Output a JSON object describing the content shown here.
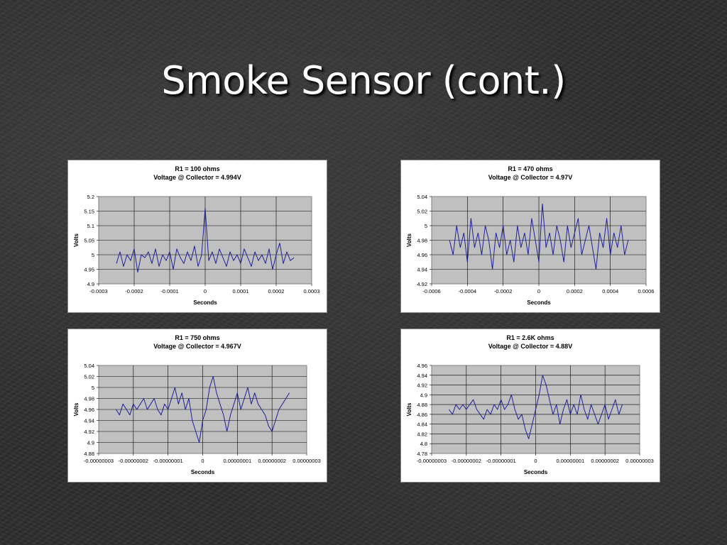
{
  "slide": {
    "title": "Smoke Sensor (cont.)",
    "colors": {
      "background": "#2f2f2f",
      "title": "#ffffff",
      "plot_area": "#c0c0c0",
      "series": "#1f1f9a"
    }
  },
  "chart_data": [
    {
      "type": "line",
      "title": "R1 = 100 ohms",
      "subtitle": "Voltage @ Collector = 4.994V",
      "xlabel": "Seconds",
      "ylabel": "Volts",
      "xlim": [
        -0.0003,
        0.0003
      ],
      "ylim": [
        4.9,
        5.2
      ],
      "x_ticks": [
        "-0.0003",
        "-0.0002",
        "-0.0001",
        "0",
        "0.0001",
        "0.0002",
        "0.0003"
      ],
      "y_ticks": [
        "4.9",
        "4.95",
        "5",
        "5.05",
        "5.1",
        "5.15",
        "5.2"
      ],
      "grid": true,
      "legend": "none",
      "series": [
        {
          "x": [
            -0.00025,
            -0.00024,
            -0.00023,
            -0.00022,
            -0.00021,
            -0.0002,
            -0.00019,
            -0.00018,
            -0.00017,
            -0.00016,
            -0.00015,
            -0.00014,
            -0.00013,
            -0.00012,
            -0.00011,
            -0.0001,
            -9e-05,
            -8e-05,
            -7e-05,
            -6e-05,
            -5e-05,
            -4e-05,
            -3e-05,
            -2e-05,
            -1e-05,
            0,
            1e-05,
            2e-05,
            3e-05,
            4e-05,
            5e-05,
            6e-05,
            7e-05,
            8e-05,
            9e-05,
            0.0001,
            0.00011,
            0.00012,
            0.00013,
            0.00014,
            0.00015,
            0.00016,
            0.00017,
            0.00018,
            0.00019,
            0.0002,
            0.00021,
            0.00022,
            0.00023,
            0.00024,
            0.00025
          ],
          "y": [
            4.97,
            5.01,
            4.96,
            5.0,
            4.98,
            5.02,
            4.94,
            5.0,
            4.99,
            5.01,
            4.97,
            5.02,
            4.96,
            5.0,
            4.98,
            5.01,
            4.95,
            5.02,
            4.99,
            4.97,
            5.01,
            4.98,
            5.03,
            4.96,
            5.0,
            5.16,
            4.98,
            5.01,
            4.97,
            5.02,
            4.99,
            4.96,
            5.01,
            4.98,
            5.0,
            4.97,
            5.02,
            4.99,
            4.96,
            5.01,
            4.98,
            5.0,
            4.97,
            5.02,
            4.95,
            5.0,
            5.04,
            4.97,
            5.01,
            4.98,
            4.99
          ]
        }
      ]
    },
    {
      "type": "line",
      "title": "R1 = 470 ohms",
      "subtitle": "Voltage @ Collector = 4.97V",
      "xlabel": "Seconds",
      "ylabel": "Volts",
      "xlim": [
        -0.0006,
        0.0006
      ],
      "ylim": [
        4.92,
        5.04
      ],
      "x_ticks": [
        "-0.0006",
        "-0.0004",
        "-0.0002",
        "0",
        "0.0002",
        "0.0004",
        "0.0006"
      ],
      "y_ticks": [
        "4.92",
        "4.94",
        "4.96",
        "4.98",
        "5",
        "5.02",
        "5.04"
      ],
      "grid": true,
      "legend": "none",
      "series": [
        {
          "x": [
            -0.0005,
            -0.00048,
            -0.00046,
            -0.00044,
            -0.00042,
            -0.0004,
            -0.00038,
            -0.00036,
            -0.00034,
            -0.00032,
            -0.0003,
            -0.00028,
            -0.00026,
            -0.00024,
            -0.00022,
            -0.0002,
            -0.00018,
            -0.00016,
            -0.00014,
            -0.00012,
            -0.0001,
            -8e-05,
            -6e-05,
            -4e-05,
            -2e-05,
            0,
            2e-05,
            4e-05,
            6e-05,
            8e-05,
            0.0001,
            0.00012,
            0.00014,
            0.00016,
            0.00018,
            0.0002,
            0.00022,
            0.00024,
            0.00026,
            0.00028,
            0.0003,
            0.00032,
            0.00034,
            0.00036,
            0.00038,
            0.0004,
            0.00042,
            0.00044,
            0.00046,
            0.00048,
            0.0005
          ],
          "y": [
            4.98,
            4.96,
            5.0,
            4.97,
            4.99,
            4.95,
            5.01,
            4.97,
            4.99,
            4.96,
            5.0,
            4.98,
            4.94,
            4.99,
            4.97,
            5.0,
            4.96,
            4.98,
            4.95,
            5.0,
            4.97,
            4.99,
            4.96,
            5.01,
            4.98,
            4.95,
            5.03,
            4.97,
            4.99,
            4.96,
            5.0,
            4.98,
            4.95,
            5.0,
            4.97,
            4.99,
            5.01,
            4.96,
            4.98,
            5.0,
            4.97,
            4.94,
            4.99,
            4.97,
            5.01,
            4.96,
            4.99,
            4.97,
            5.0,
            4.96,
            4.98
          ]
        }
      ]
    },
    {
      "type": "line",
      "title": "R1 = 750 ohms",
      "subtitle": "Voltage @ Collector = 4.967V",
      "xlabel": "Seconds",
      "ylabel": "Volts",
      "xlim": [
        -3e-08,
        3e-08
      ],
      "ylim": [
        4.88,
        5.04
      ],
      "x_ticks": [
        "-0.00000003",
        "-0.00000002",
        "-0.00000001",
        "0",
        "0.00000001",
        "0.00000002",
        "0.00000003"
      ],
      "y_ticks": [
        "4.88",
        "4.9",
        "4.92",
        "4.94",
        "4.96",
        "4.98",
        "5",
        "5.02",
        "5.04"
      ],
      "grid": true,
      "legend": "none",
      "series": [
        {
          "x": [
            -2.5e-08,
            -2.4e-08,
            -2.3e-08,
            -2.2e-08,
            -2.1e-08,
            -2e-08,
            -1.9e-08,
            -1.8e-08,
            -1.7e-08,
            -1.6e-08,
            -1.5e-08,
            -1.4e-08,
            -1.3e-08,
            -1.2e-08,
            -1.1e-08,
            -1e-08,
            -9e-09,
            -8e-09,
            -7e-09,
            -6e-09,
            -5e-09,
            -4e-09,
            -3e-09,
            -2e-09,
            -1e-09,
            0,
            1e-09,
            2e-09,
            3e-09,
            4e-09,
            5e-09,
            6e-09,
            7e-09,
            8e-09,
            9e-09,
            1e-08,
            1.1e-08,
            1.2e-08,
            1.3e-08,
            1.4e-08,
            1.5e-08,
            1.6e-08,
            1.7e-08,
            1.8e-08,
            1.9e-08,
            2e-08,
            2.1e-08,
            2.2e-08,
            2.3e-08,
            2.4e-08,
            2.5e-08
          ],
          "y": [
            4.96,
            4.95,
            4.97,
            4.96,
            4.95,
            4.97,
            4.96,
            4.97,
            4.98,
            4.96,
            4.97,
            4.98,
            4.96,
            4.95,
            4.97,
            4.96,
            4.98,
            5.0,
            4.97,
            4.99,
            4.96,
            4.98,
            4.94,
            4.92,
            4.9,
            4.94,
            4.96,
            5.0,
            5.02,
            4.99,
            4.97,
            4.95,
            4.92,
            4.95,
            4.97,
            4.99,
            4.96,
            4.98,
            5.0,
            4.97,
            4.99,
            4.97,
            4.96,
            4.95,
            4.93,
            4.92,
            4.94,
            4.96,
            4.97,
            4.98,
            4.99
          ]
        }
      ]
    },
    {
      "type": "line",
      "title": "R1 = 2.6K ohms",
      "subtitle": "Voltage @ Collector = 4.88V",
      "xlabel": "Seconds",
      "ylabel": "Volts",
      "xlim": [
        -3e-08,
        3e-08
      ],
      "ylim": [
        4.78,
        4.96
      ],
      "x_ticks": [
        "-0.00000003",
        "-0.00000002",
        "-0.00000001",
        "0",
        "0.00000001",
        "0.00000002",
        "0.00000003"
      ],
      "y_ticks": [
        "4.78",
        "4.8",
        "4.82",
        "4.84",
        "4.86",
        "4.88",
        "4.9",
        "4.92",
        "4.94",
        "4.96"
      ],
      "grid": true,
      "legend": "none",
      "series": [
        {
          "x": [
            -2.5e-08,
            -2.4e-08,
            -2.3e-08,
            -2.2e-08,
            -2.1e-08,
            -2e-08,
            -1.9e-08,
            -1.8e-08,
            -1.7e-08,
            -1.6e-08,
            -1.5e-08,
            -1.4e-08,
            -1.3e-08,
            -1.2e-08,
            -1.1e-08,
            -1e-08,
            -9e-09,
            -8e-09,
            -7e-09,
            -6e-09,
            -5e-09,
            -4e-09,
            -3e-09,
            -2e-09,
            -1e-09,
            0,
            1e-09,
            2e-09,
            3e-09,
            4e-09,
            5e-09,
            6e-09,
            7e-09,
            8e-09,
            9e-09,
            1e-08,
            1.1e-08,
            1.2e-08,
            1.3e-08,
            1.4e-08,
            1.5e-08,
            1.6e-08,
            1.7e-08,
            1.8e-08,
            1.9e-08,
            2e-08,
            2.1e-08,
            2.2e-08,
            2.3e-08,
            2.4e-08,
            2.5e-08
          ],
          "y": [
            4.87,
            4.86,
            4.88,
            4.87,
            4.88,
            4.87,
            4.88,
            4.89,
            4.87,
            4.86,
            4.85,
            4.87,
            4.86,
            4.88,
            4.87,
            4.89,
            4.87,
            4.88,
            4.9,
            4.87,
            4.85,
            4.86,
            4.83,
            4.81,
            4.84,
            4.87,
            4.9,
            4.94,
            4.92,
            4.89,
            4.86,
            4.88,
            4.84,
            4.87,
            4.89,
            4.86,
            4.88,
            4.86,
            4.9,
            4.87,
            4.85,
            4.88,
            4.86,
            4.84,
            4.86,
            4.88,
            4.85,
            4.87,
            4.89,
            4.86,
            4.88
          ]
        }
      ]
    }
  ]
}
